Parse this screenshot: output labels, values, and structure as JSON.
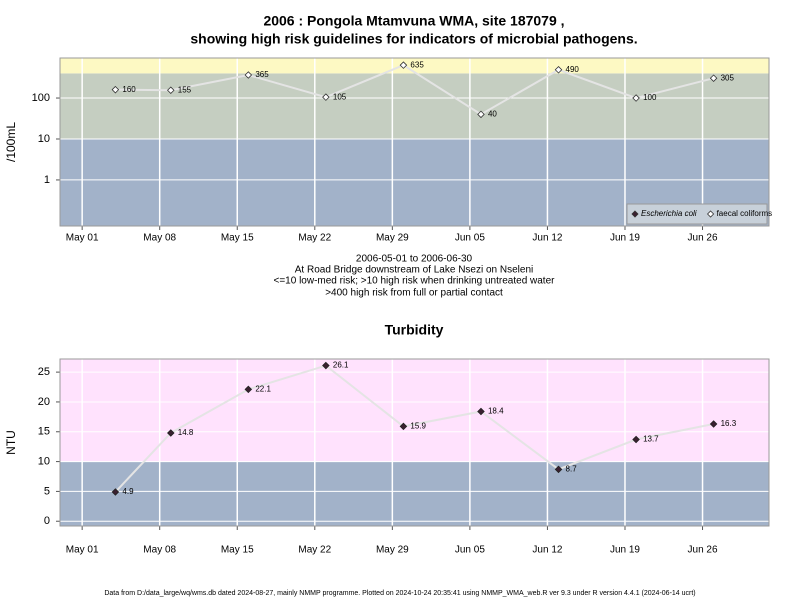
{
  "chart_data": [
    {
      "type": "line",
      "title": [
        "2006 : Pongola Mtamvuna WMA, site 187079 ,",
        "showing high risk guidelines for indicators of microbial pathogens."
      ],
      "notes": [
        "2006-05-01 to 2006-06-30",
        "At Road Bridge downstream of Lake Nsezi on Nseleni",
        "<=10 low-med risk; >10 high risk when drinking untreated water",
        ">400 high risk from full or partial contact"
      ],
      "y_label": "/100mL",
      "log_scale": true,
      "grid": true,
      "legend": "bottom-right",
      "x": [
        "May 04",
        "May 09",
        "May 16",
        "May 23",
        "May 30",
        "Jun 06",
        "Jun 13",
        "Jun 20",
        "Jun 27"
      ],
      "series": [
        {
          "name": "Escherichia coli",
          "color": "#3a2030",
          "marker": "filled-diamond",
          "values": [
            null,
            null,
            null,
            null,
            null,
            null,
            null,
            null,
            null
          ]
        },
        {
          "name": "faecal coliforms",
          "color": "#ffffff",
          "marker": "open-diamond",
          "values": [
            160,
            155,
            365,
            105,
            635,
            40,
            490,
            100,
            305
          ]
        }
      ],
      "xlim": [
        "Apr 29",
        "Jul 02"
      ],
      "xticks": [
        "May 01",
        "May 08",
        "May 15",
        "May 22",
        "May 29",
        "Jun 05",
        "Jun 12",
        "Jun 19",
        "Jun 26"
      ],
      "ylim": [
        0.075,
        950
      ],
      "yticks": [
        1,
        10,
        100
      ],
      "bands": [
        {
          "from": 0.075,
          "to": 10,
          "color": "#a2b2c9"
        },
        {
          "from": 10,
          "to": 400,
          "color": "#c5cec1"
        },
        {
          "from": 400,
          "to": 950,
          "color": "#fdf9c3"
        }
      ]
    },
    {
      "type": "line",
      "title": "Turbidity",
      "y_label": "NTU",
      "grid": true,
      "x": [
        "May 04",
        "May 09",
        "May 16",
        "May 23",
        "May 30",
        "Jun 06",
        "Jun 13",
        "Jun 20",
        "Jun 27"
      ],
      "series": [
        {
          "name": "Turbidity",
          "color": "#3a2030",
          "marker": "filled-diamond",
          "values": [
            4.9,
            14.8,
            22.1,
            26.1,
            15.9,
            18.4,
            8.7,
            13.7,
            16.3
          ]
        }
      ],
      "xlim": [
        "Apr 29",
        "Jul 02"
      ],
      "xticks": [
        "May 01",
        "May 08",
        "May 15",
        "May 22",
        "May 29",
        "Jun 05",
        "Jun 12",
        "Jun 19",
        "Jun 26"
      ],
      "ylim": [
        -0.8,
        27.2
      ],
      "yticks": [
        0,
        5,
        10,
        15,
        20,
        25
      ],
      "bands": [
        {
          "from": -0.8,
          "to": 10,
          "color": "#a2b2c9"
        },
        {
          "from": 10,
          "to": 27.2,
          "color": "#ffe2fd"
        }
      ]
    }
  ],
  "footer": "Data from D:/data_large/wq/wms.db dated 2024-08-27, mainly NMMP programme. Plotted on 2024-10-24 20:35:41 using NMMP_WMA_web.R ver 9.3 under R version 4.4.1 (2024-06-14 ucrt)"
}
